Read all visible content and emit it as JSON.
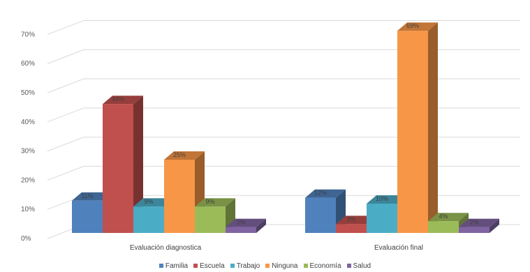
{
  "chart_data": {
    "type": "bar",
    "variant": "3d-clustered-column",
    "categories": [
      "Evaluación diagnostica",
      "Evaluación final"
    ],
    "series": [
      {
        "name": "Familia",
        "values": [
          11,
          12
        ],
        "labels": [
          "11%",
          "12%"
        ],
        "color": "#4F81BD"
      },
      {
        "name": "Escuela",
        "values": [
          44,
          3
        ],
        "labels": [
          "44%",
          "3%"
        ],
        "color": "#C0504D"
      },
      {
        "name": "Trabajo",
        "values": [
          9,
          10
        ],
        "labels": [
          "9%",
          "10%"
        ],
        "color": "#4BACC6"
      },
      {
        "name": "Ninguna",
        "values": [
          25,
          69
        ],
        "labels": [
          "25%",
          "69%"
        ],
        "color": "#F79646"
      },
      {
        "name": "Economía",
        "values": [
          9,
          4
        ],
        "labels": [
          "9%",
          "4%"
        ],
        "color": "#9BBB59"
      },
      {
        "name": "Salud",
        "values": [
          2,
          2
        ],
        "labels": [
          "2%",
          "2%"
        ],
        "color": "#8064A2"
      }
    ],
    "y_ticks": [
      "0%",
      "10%",
      "20%",
      "30%",
      "40%",
      "50%",
      "60%",
      "70%"
    ],
    "ylim": [
      0,
      70
    ],
    "grid": true,
    "legend_position": "bottom"
  }
}
